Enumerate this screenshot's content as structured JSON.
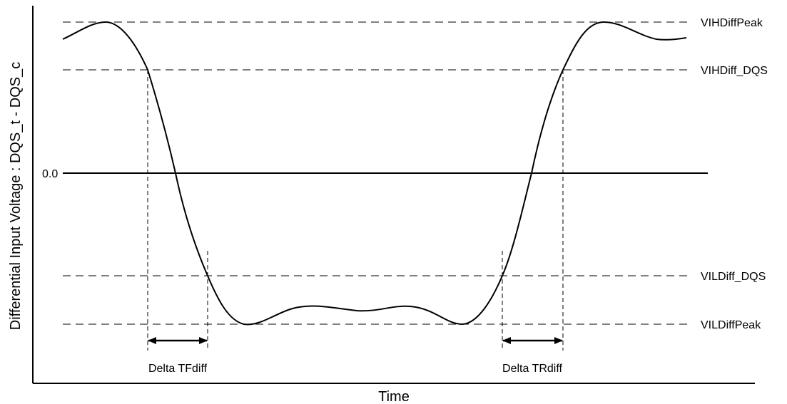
{
  "diagram": {
    "y_axis_label": "Differential Input Voltage : DQS_t - DQS_c",
    "x_axis_label": "Time",
    "zero_label": "0.0",
    "levels": {
      "vih_peak": "VIHDiffPeak",
      "vih_dqs": "VIHDiff_DQS",
      "vil_dqs": "VILDiff_DQS",
      "vil_peak": "VILDiffPeak"
    },
    "intervals": {
      "fall": "Delta TFdiff",
      "rise": "Delta TRdiff"
    }
  }
}
